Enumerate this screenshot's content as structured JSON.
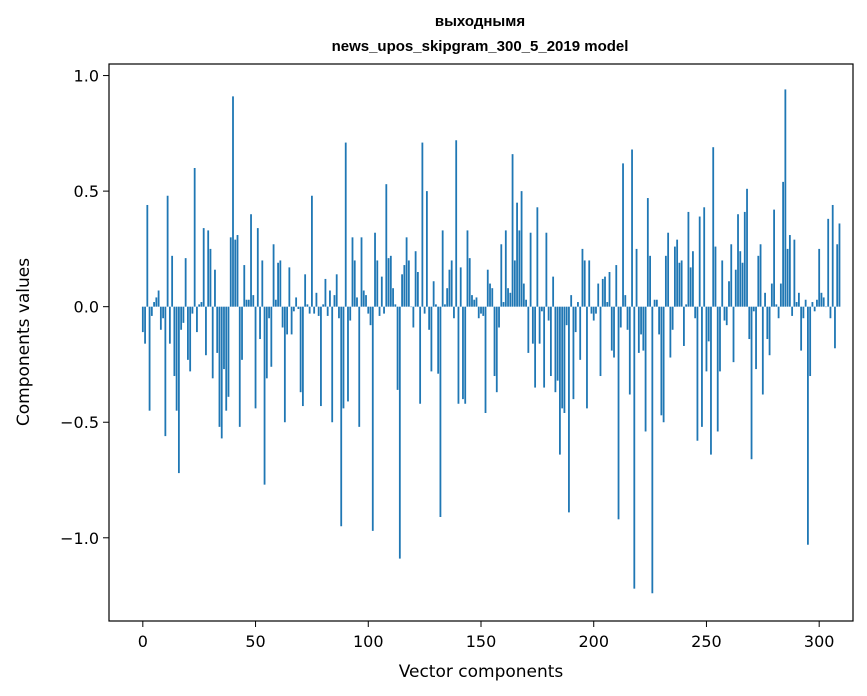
{
  "chart_data": {
    "type": "bar",
    "title_lines": [
      "выходнымя",
      "news_upos_skipgram_300_5_2019 model"
    ],
    "xlabel": "Vector components",
    "ylabel": "Components values",
    "xlim": [
      -15,
      315
    ],
    "ylim": [
      -1.36,
      1.05
    ],
    "xticks": [
      {
        "value": 0,
        "label": "0"
      },
      {
        "value": 50,
        "label": "50"
      },
      {
        "value": 100,
        "label": "100"
      },
      {
        "value": 150,
        "label": "150"
      },
      {
        "value": 200,
        "label": "200"
      },
      {
        "value": 250,
        "label": "250"
      },
      {
        "value": 300,
        "label": "300"
      }
    ],
    "yticks": [
      {
        "value": 1.0,
        "label": "1.0"
      },
      {
        "value": 0.5,
        "label": "0.5"
      },
      {
        "value": 0.0,
        "label": "0.0"
      },
      {
        "value": -0.5,
        "label": "−0.5"
      },
      {
        "value": -1.0,
        "label": "−1.0"
      }
    ],
    "bar_color": "#1f77b4",
    "grid": false,
    "legend": "none",
    "values": [
      -0.11,
      -0.16,
      0.44,
      -0.45,
      -0.04,
      0.02,
      0.04,
      0.07,
      -0.1,
      -0.05,
      -0.56,
      0.48,
      -0.16,
      0.22,
      -0.3,
      -0.45,
      -0.72,
      -0.1,
      -0.07,
      0.21,
      -0.23,
      -0.28,
      -0.03,
      0.6,
      -0.11,
      0.01,
      0.02,
      0.34,
      -0.21,
      0.33,
      0.25,
      -0.31,
      0.16,
      -0.2,
      -0.52,
      -0.57,
      -0.27,
      -0.45,
      -0.39,
      0.3,
      0.91,
      0.29,
      0.31,
      -0.52,
      -0.23,
      0.18,
      0.03,
      0.03,
      0.4,
      0.05,
      -0.44,
      0.34,
      -0.14,
      0.2,
      -0.77,
      -0.31,
      -0.05,
      -0.26,
      0.27,
      0.03,
      0.19,
      0.2,
      -0.09,
      -0.5,
      -0.12,
      0.17,
      -0.12,
      -0.02,
      0.04,
      -0.01,
      -0.37,
      -0.43,
      0.14,
      0.01,
      -0.03,
      0.48,
      -0.03,
      0.06,
      -0.04,
      -0.43,
      0.01,
      0.12,
      -0.04,
      0.07,
      -0.5,
      0.05,
      0.14,
      -0.05,
      -0.95,
      -0.44,
      0.71,
      -0.41,
      -0.06,
      0.3,
      0.2,
      0.04,
      -0.52,
      0.3,
      0.07,
      0.05,
      -0.03,
      -0.08,
      -0.97,
      0.32,
      0.2,
      -0.04,
      0.13,
      -0.03,
      0.53,
      0.21,
      0.22,
      0.08,
      0.01,
      -0.36,
      -1.09,
      0.14,
      0.18,
      0.3,
      0.2,
      0.0,
      -0.09,
      0.24,
      0.15,
      -0.42,
      0.71,
      -0.03,
      0.5,
      -0.1,
      -0.28,
      0.11,
      0.01,
      -0.29,
      -0.91,
      0.33,
      0.01,
      0.08,
      0.16,
      0.2,
      -0.05,
      0.72,
      -0.42,
      0.17,
      -0.4,
      -0.42,
      0.33,
      0.21,
      0.05,
      0.03,
      0.04,
      -0.05,
      -0.03,
      -0.04,
      -0.46,
      0.16,
      0.1,
      0.08,
      -0.3,
      -0.37,
      -0.09,
      0.27,
      0.02,
      0.33,
      0.08,
      0.06,
      0.66,
      0.2,
      0.45,
      0.33,
      0.5,
      0.1,
      0.03,
      -0.2,
      0.32,
      -0.16,
      -0.35,
      0.43,
      -0.16,
      -0.02,
      -0.35,
      0.32,
      -0.06,
      -0.3,
      0.13,
      -0.37,
      -0.32,
      -0.64,
      -0.44,
      -0.46,
      -0.08,
      -0.89,
      0.05,
      -0.4,
      -0.11,
      0.02,
      -0.23,
      0.25,
      0.2,
      -0.44,
      0.2,
      -0.03,
      -0.06,
      -0.03,
      0.1,
      -0.3,
      0.12,
      0.13,
      0.02,
      0.15,
      -0.19,
      -0.22,
      0.18,
      -0.92,
      -0.09,
      0.62,
      0.05,
      -0.1,
      -0.38,
      0.68,
      -1.22,
      0.25,
      -0.2,
      -0.12,
      -0.19,
      -0.54,
      0.47,
      0.22,
      -1.24,
      0.03,
      0.03,
      -0.12,
      -0.47,
      -0.5,
      0.22,
      0.32,
      -0.22,
      -0.1,
      0.26,
      0.29,
      0.19,
      0.2,
      -0.17,
      0.01,
      0.41,
      0.17,
      0.24,
      -0.05,
      -0.58,
      0.39,
      -0.52,
      0.43,
      -0.28,
      -0.15,
      -0.64,
      0.69,
      0.26,
      -0.54,
      -0.28,
      0.2,
      -0.06,
      -0.08,
      0.11,
      0.27,
      -0.24,
      0.16,
      0.4,
      0.24,
      0.19,
      0.41,
      0.51,
      -0.14,
      -0.66,
      -0.02,
      -0.27,
      0.22,
      0.27,
      -0.38,
      0.06,
      -0.14,
      -0.21,
      0.1,
      0.42,
      0.01,
      -0.05,
      0.1,
      0.54,
      0.94,
      0.25,
      0.31,
      -0.04,
      0.29,
      0.02,
      0.06,
      -0.19,
      -0.05,
      0.03,
      -1.03,
      -0.3,
      0.02,
      -0.02,
      0.03,
      0.25,
      0.06,
      0.04,
      0.0,
      0.38,
      -0.05,
      0.44,
      -0.18,
      0.27,
      0.36
    ]
  }
}
